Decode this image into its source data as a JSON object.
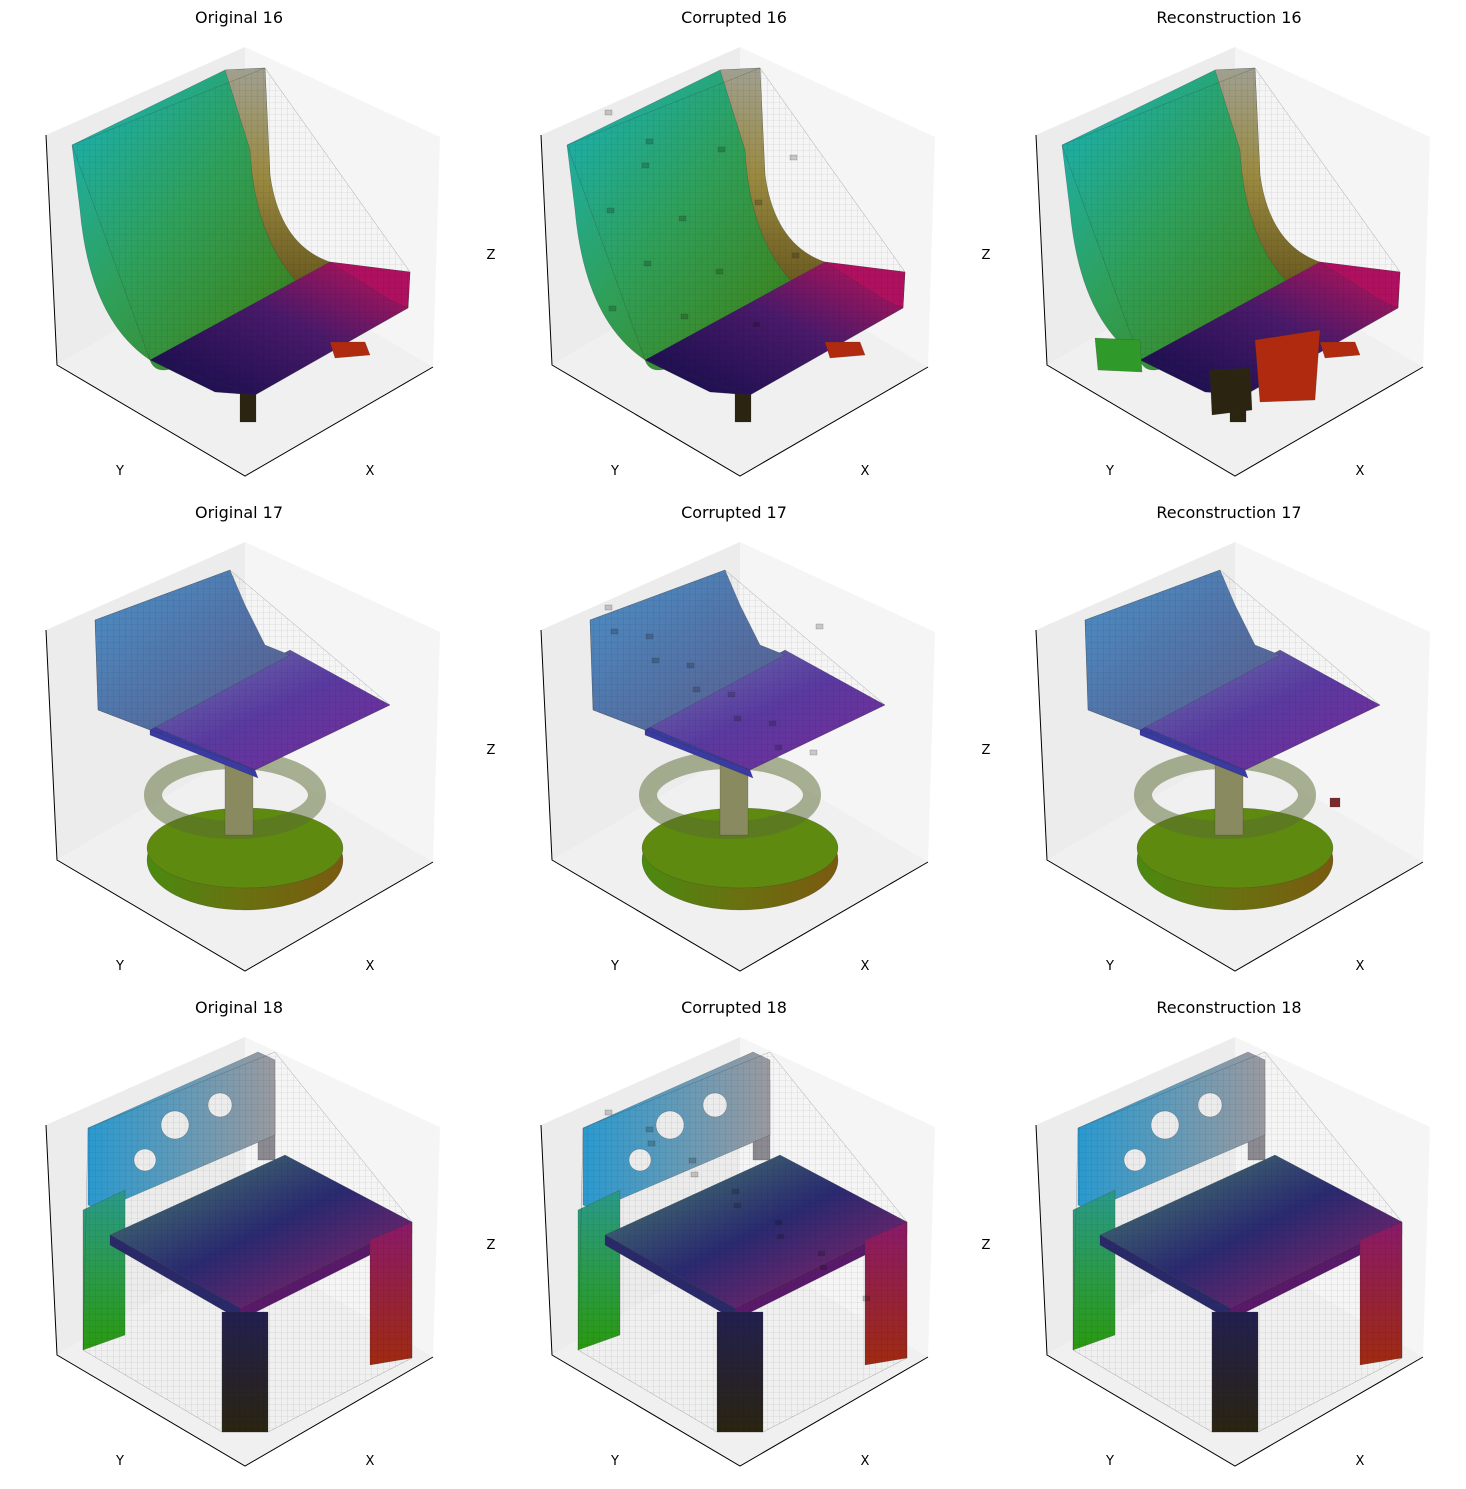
{
  "figure": {
    "axis_labels": {
      "x": "X",
      "y": "Y",
      "z": "Z"
    },
    "rows": [
      {
        "sample": 16,
        "shape": "lounge-chair",
        "panels": [
          {
            "title": "Original 16",
            "variant": "original"
          },
          {
            "title": "Corrupted 16",
            "variant": "corrupted"
          },
          {
            "title": "Reconstruction 16",
            "variant": "reconstruction"
          }
        ]
      },
      {
        "sample": 17,
        "shape": "swivel-chair",
        "panels": [
          {
            "title": "Original 17",
            "variant": "original"
          },
          {
            "title": "Corrupted 17",
            "variant": "corrupted"
          },
          {
            "title": "Reconstruction 17",
            "variant": "reconstruction"
          }
        ]
      },
      {
        "sample": 18,
        "shape": "four-leg-chair",
        "panels": [
          {
            "title": "Original 18",
            "variant": "original"
          },
          {
            "title": "Corrupted 18",
            "variant": "corrupted"
          },
          {
            "title": "Reconstruction 18",
            "variant": "reconstruction"
          }
        ]
      }
    ],
    "colors": {
      "pane_left": "#ececec",
      "pane_right": "#f5f5f5",
      "pane_floor": "#f0f0f0",
      "edge": "#333333",
      "teal": "#1aa7b0",
      "blue": "#4a78c0",
      "green": "#2f9a2a",
      "olive": "#8b8d2a",
      "purple": "#6a2aa0",
      "magenta": "#c0125a",
      "navy": "#1a1250",
      "dark": "#2a2410",
      "red": "#b02a10"
    }
  }
}
